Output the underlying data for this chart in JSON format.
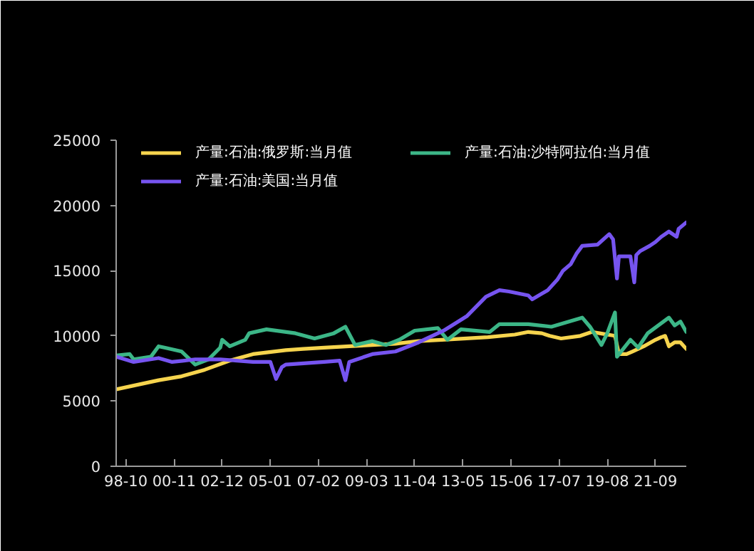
{
  "chart_data": {
    "type": "line",
    "xlim": [
      "1998-05",
      "2023-01"
    ],
    "xticks": [
      {
        "value": "1998-10",
        "label": "98-10"
      },
      {
        "value": "2000-11",
        "label": "00-11"
      },
      {
        "value": "2002-12",
        "label": "02-12"
      },
      {
        "value": "2005-01",
        "label": "05-01"
      },
      {
        "value": "2007-02",
        "label": "07-02"
      },
      {
        "value": "2009-03",
        "label": "09-03"
      },
      {
        "value": "2011-04",
        "label": "11-04"
      },
      {
        "value": "2013-05",
        "label": "13-05"
      },
      {
        "value": "2015-06",
        "label": "15-06"
      },
      {
        "value": "2017-07",
        "label": "17-07"
      },
      {
        "value": "2019-08",
        "label": "19-08"
      },
      {
        "value": "2021-09",
        "label": "21-09"
      }
    ],
    "ylim": [
      0,
      25000
    ],
    "yticks": [
      0,
      5000,
      10000,
      15000,
      20000,
      25000
    ],
    "legend": "top left",
    "series": [
      {
        "name": "产量:石油:俄罗斯:当月值",
        "color": "#f6d44e",
        "x": [
          "1998-05",
          "2000-03",
          "2001-03",
          "2002-03",
          "2003-04",
          "2004-04",
          "2005-09",
          "2006-06",
          "2007-05",
          "2008-06",
          "2009-06",
          "2010-06",
          "2011-06",
          "2012-06",
          "2013-07",
          "2014-06",
          "2015-08",
          "2016-03",
          "2016-10",
          "2017-02",
          "2017-08",
          "2018-06",
          "2018-12",
          "2019-04",
          "2019-12",
          "2020-02",
          "2020-06",
          "2020-09",
          "2020-12",
          "2021-03",
          "2021-09",
          "2021-12",
          "2022-02",
          "2022-04",
          "2022-07",
          "2022-10",
          "2023-01"
        ],
        "values": [
          5900,
          6600,
          6900,
          7400,
          8100,
          8600,
          8900,
          9000,
          9100,
          9200,
          9300,
          9400,
          9600,
          9700,
          9800,
          9900,
          10100,
          10300,
          10200,
          10000,
          9800,
          10000,
          10300,
          10200,
          10000,
          8600,
          8600,
          8800,
          9000,
          9200,
          9700,
          9900,
          10000,
          9200,
          9500,
          9500,
          9000
        ]
      },
      {
        "name": "产量:石油:沙特阿拉伯:当月值",
        "color": "#3cb687",
        "x": [
          "1998-05",
          "1998-12",
          "1999-02",
          "1999-11",
          "2000-03",
          "2000-06",
          "2001-03",
          "2001-10",
          "2002-05",
          "2002-11",
          "2002-12",
          "2003-04",
          "2003-12",
          "2004-02",
          "2004-11",
          "2006-02",
          "2006-12",
          "2007-10",
          "2008-04",
          "2008-09",
          "2009-06",
          "2010-01",
          "2010-08",
          "2011-04",
          "2012-04",
          "2012-09",
          "2013-04",
          "2014-07",
          "2014-12",
          "2016-03",
          "2017-03",
          "2018-07",
          "2018-11",
          "2019-05",
          "2019-08",
          "2019-12",
          "2020-01",
          "2020-08",
          "2020-12",
          "2021-05",
          "2022-04",
          "2022-07",
          "2022-10",
          "2023-01"
        ],
        "values": [
          8500,
          8600,
          8200,
          8400,
          9200,
          9100,
          8800,
          7800,
          8200,
          9100,
          9700,
          9200,
          9700,
          10200,
          10500,
          10200,
          9800,
          10200,
          10700,
          9300,
          9600,
          9300,
          9700,
          10400,
          10600,
          9700,
          10500,
          10300,
          10900,
          10900,
          10700,
          11400,
          10700,
          9300,
          10200,
          11800,
          8400,
          9700,
          9100,
          10200,
          11400,
          10800,
          11100,
          10300
        ]
      },
      {
        "name": "产量:石油:美国:当月值",
        "color": "#7654f0",
        "x": [
          "1998-05",
          "1999-02",
          "2000-03",
          "2000-10",
          "2001-10",
          "2002-11",
          "2004-04",
          "2004-11",
          "2005-01",
          "2005-04",
          "2005-07",
          "2005-09",
          "2007-05",
          "2008-01",
          "2008-04",
          "2008-06",
          "2009-06",
          "2010-06",
          "2011-06",
          "2012-07",
          "2013-07",
          "2014-05",
          "2014-12",
          "2015-05",
          "2016-03",
          "2016-05",
          "2017-01",
          "2017-06",
          "2017-09",
          "2018-01",
          "2018-04",
          "2018-07",
          "2019-03",
          "2019-09",
          "2019-11",
          "2020-01",
          "2020-02",
          "2020-08",
          "2020-10",
          "2020-11",
          "2021-01",
          "2021-06",
          "2021-09",
          "2021-12",
          "2022-04",
          "2022-08",
          "2022-09",
          "2023-01"
        ],
        "values": [
          8400,
          8000,
          8300,
          8000,
          8200,
          8200,
          8000,
          8000,
          8000,
          6700,
          7600,
          7800,
          8000,
          8100,
          6600,
          8000,
          8600,
          8800,
          9500,
          10400,
          11500,
          13000,
          13500,
          13400,
          13100,
          12800,
          13500,
          14300,
          15000,
          15500,
          16300,
          16900,
          17000,
          17800,
          17400,
          14400,
          16100,
          16100,
          14100,
          16200,
          16500,
          16900,
          17200,
          17600,
          18000,
          17600,
          18200,
          18700
        ]
      }
    ]
  }
}
